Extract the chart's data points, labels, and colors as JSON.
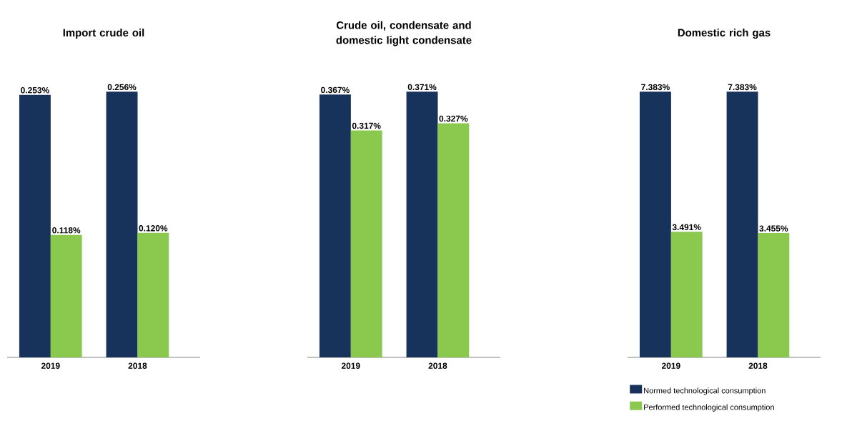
{
  "chart_data": [
    {
      "type": "bar",
      "title": "Import crude oil",
      "categories": [
        "2019",
        "2018"
      ],
      "series": [
        {
          "color": "#17335b",
          "values": [
            0.253,
            0.256
          ],
          "value_labels": [
            "0.253%",
            "0.256%"
          ]
        },
        {
          "color": "#8bc94e",
          "values": [
            0.118,
            0.12
          ],
          "value_labels": [
            "0.118%",
            "0.120%"
          ]
        }
      ]
    },
    {
      "type": "bar",
      "title": "Crude oil, condensate and domestic light condensate",
      "categories": [
        "2019",
        "2018"
      ],
      "series": [
        {
          "color": "#17335b",
          "values": [
            0.367,
            0.371
          ],
          "value_labels": [
            "0.367%",
            "0.371%"
          ]
        },
        {
          "color": "#8bc94e",
          "values": [
            0.317,
            0.327
          ],
          "value_labels": [
            "0.317%",
            "0.327%"
          ]
        }
      ]
    },
    {
      "type": "bar",
      "title": "Domestic rich gas",
      "categories": [
        "2019",
        "2018"
      ],
      "legend": "bottom",
      "series": [
        {
          "name": "Normed technological consumption",
          "color": "#17335b",
          "values": [
            7.383,
            7.383
          ],
          "value_labels": [
            "7.383%",
            "7.383%"
          ]
        },
        {
          "name": "Performed technological consumption",
          "color": "#8bc94e",
          "values": [
            3.491,
            3.455
          ],
          "value_labels": [
            "3.491%",
            "3.455%"
          ]
        }
      ]
    }
  ]
}
